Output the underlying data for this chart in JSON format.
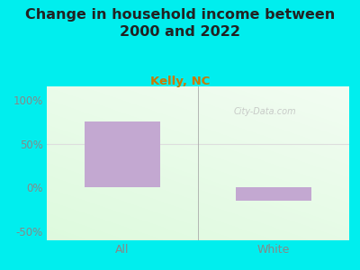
{
  "title": "Change in household income between\n2000 and 2022",
  "subtitle": "Kelly, NC",
  "categories": [
    "All",
    "White"
  ],
  "values": [
    75,
    -15
  ],
  "bar_color": "#c3a8d1",
  "title_fontsize": 11.5,
  "subtitle_fontsize": 9.5,
  "subtitle_color": "#cc7700",
  "title_color": "#222222",
  "ylim": [
    -60,
    115
  ],
  "yticks": [
    -50,
    0,
    50,
    100
  ],
  "ytick_labels": [
    "-50%",
    "0%",
    "50%",
    "100%"
  ],
  "background_color": "#00eeee",
  "tick_label_color": "#888888",
  "watermark": "City-Data.com",
  "grid_line_color": "#dddddd",
  "divider_color": "#aaaaaa",
  "bottom_line_color": "#bbbbbb"
}
